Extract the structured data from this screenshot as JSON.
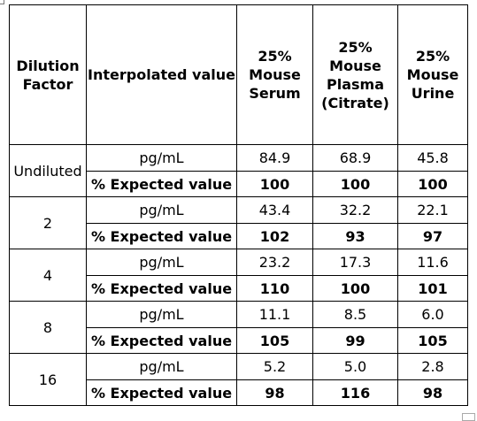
{
  "table": {
    "headers": {
      "dilution_factor": "Dilution\nFactor",
      "interpolated_value": "Interpolated value",
      "serum": "25%\nMouse\nSerum",
      "plasma": "25%\nMouse\nPlasma\n(Citrate)",
      "urine": "25%\nMouse\nUrine"
    },
    "groups": [
      {
        "dilution": "Undiluted",
        "unit_label": "pg/mL",
        "pct_label": "% Expected value",
        "values": [
          "84.9",
          "68.9",
          "45.8"
        ],
        "pct": [
          "100",
          "100",
          "100"
        ]
      },
      {
        "dilution": "2",
        "unit_label": "pg/mL",
        "pct_label": "% Expected value",
        "values": [
          "43.4",
          "32.2",
          "22.1"
        ],
        "pct": [
          "102",
          "93",
          "97"
        ]
      },
      {
        "dilution": "4",
        "unit_label": "pg/mL",
        "pct_label": "% Expected value",
        "values": [
          "23.2",
          "17.3",
          "11.6"
        ],
        "pct": [
          "110",
          "100",
          "101"
        ]
      },
      {
        "dilution": "8",
        "unit_label": "pg/mL",
        "pct_label": "% Expected value",
        "values": [
          "11.1",
          "8.5",
          "6.0"
        ],
        "pct": [
          "105",
          "99",
          "105"
        ]
      },
      {
        "dilution": "16",
        "unit_label": "pg/mL",
        "pct_label": "% Expected value",
        "values": [
          "5.2",
          "5.0",
          "2.8"
        ],
        "pct": [
          "98",
          "116",
          "98"
        ]
      }
    ]
  }
}
